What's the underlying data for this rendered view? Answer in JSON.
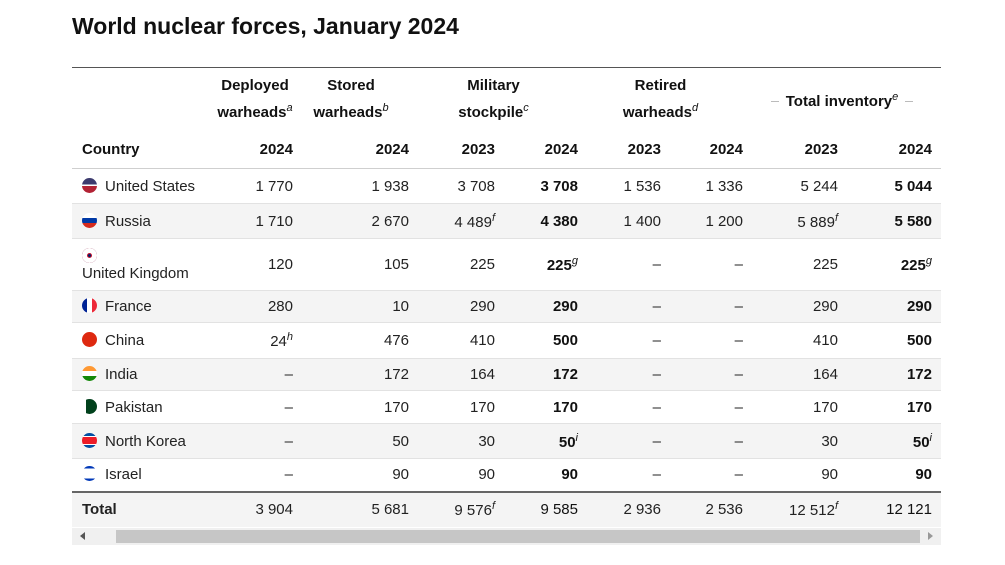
{
  "title": "World nuclear forces, January 2024",
  "table": {
    "groups": [
      {
        "label": "Deployed warheads",
        "note": "a"
      },
      {
        "label": "Stored warheads",
        "note": "b"
      },
      {
        "label": "Military stockpile",
        "note": "c"
      },
      {
        "label": "Retired warheads",
        "note": "d"
      },
      {
        "label": "Total inventory",
        "note": "e"
      }
    ],
    "years": [
      "Country",
      "2024",
      "2024",
      "2023",
      "2024",
      "2023",
      "2024",
      "2023",
      "2024"
    ],
    "rows": [
      {
        "country": "United States",
        "cells": [
          {
            "text": "1 770"
          },
          {
            "text": "1 938"
          },
          {
            "text": "3 708"
          },
          {
            "text": "3 708"
          },
          {
            "text": "1 536"
          },
          {
            "text": "1 336"
          },
          {
            "text": "5 244"
          },
          {
            "text": "5 044"
          }
        ]
      },
      {
        "country": "Russia",
        "cells": [
          {
            "text": "1 710"
          },
          {
            "text": "2 670"
          },
          {
            "text": "4 489",
            "note": "f"
          },
          {
            "text": "4 380"
          },
          {
            "text": "1 400"
          },
          {
            "text": "1 200"
          },
          {
            "text": "5 889",
            "note": "f"
          },
          {
            "text": "5 580"
          }
        ]
      },
      {
        "country": "United Kingdom",
        "cells": [
          {
            "text": "120"
          },
          {
            "text": "105"
          },
          {
            "text": "225"
          },
          {
            "text": "225",
            "note": "g"
          },
          {
            "text": "–"
          },
          {
            "text": "–"
          },
          {
            "text": "225"
          },
          {
            "text": "225",
            "note": "g"
          }
        ]
      },
      {
        "country": "France",
        "cells": [
          {
            "text": "280"
          },
          {
            "text": "10"
          },
          {
            "text": "290"
          },
          {
            "text": "290"
          },
          {
            "text": "–"
          },
          {
            "text": "–"
          },
          {
            "text": "290"
          },
          {
            "text": "290"
          }
        ]
      },
      {
        "country": "China",
        "cells": [
          {
            "text": "24",
            "note": "h"
          },
          {
            "text": "476"
          },
          {
            "text": "410"
          },
          {
            "text": "500"
          },
          {
            "text": "–"
          },
          {
            "text": "–"
          },
          {
            "text": "410"
          },
          {
            "text": "500"
          }
        ]
      },
      {
        "country": "India",
        "cells": [
          {
            "text": "–"
          },
          {
            "text": "172"
          },
          {
            "text": "164"
          },
          {
            "text": "172"
          },
          {
            "text": "–"
          },
          {
            "text": "–"
          },
          {
            "text": "164"
          },
          {
            "text": "172"
          }
        ]
      },
      {
        "country": "Pakistan",
        "cells": [
          {
            "text": "–"
          },
          {
            "text": "170"
          },
          {
            "text": "170"
          },
          {
            "text": "170"
          },
          {
            "text": "–"
          },
          {
            "text": "–"
          },
          {
            "text": "170"
          },
          {
            "text": "170"
          }
        ]
      },
      {
        "country": "North Korea",
        "cells": [
          {
            "text": "–"
          },
          {
            "text": "50"
          },
          {
            "text": "30"
          },
          {
            "text": "50",
            "note": "i"
          },
          {
            "text": "–"
          },
          {
            "text": "–"
          },
          {
            "text": "30"
          },
          {
            "text": "50",
            "note": "i"
          }
        ]
      },
      {
        "country": "Israel",
        "cells": [
          {
            "text": "–"
          },
          {
            "text": "90"
          },
          {
            "text": "90"
          },
          {
            "text": "90"
          },
          {
            "text": "–"
          },
          {
            "text": "–"
          },
          {
            "text": "90"
          },
          {
            "text": "90"
          }
        ]
      }
    ],
    "total": {
      "label": "Total",
      "cells": [
        {
          "text": "3 904"
        },
        {
          "text": "5 681"
        },
        {
          "text": "9 576",
          "note": "f"
        },
        {
          "text": "9 585"
        },
        {
          "text": "2 936"
        },
        {
          "text": "2 536"
        },
        {
          "text": "12 512",
          "note": "f"
        },
        {
          "text": "12 121"
        }
      ]
    }
  }
}
